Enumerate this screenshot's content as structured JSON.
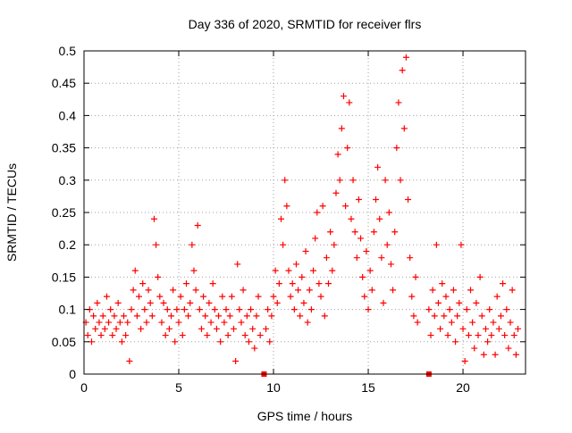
{
  "chart_data": {
    "type": "scatter",
    "title": "Day 336 of 2020, SRMTID for receiver flrs",
    "xlabel": "GPS time / hours",
    "ylabel": "SRMTID / TECUs",
    "xlim": [
      0,
      23.3
    ],
    "ylim": [
      0,
      0.5
    ],
    "x_ticks": [
      0,
      5,
      10,
      15,
      20
    ],
    "x_tick_labels": [
      "0",
      "5",
      "10",
      "15",
      "20"
    ],
    "y_ticks": [
      0,
      0.05,
      0.1,
      0.15,
      0.2,
      0.25,
      0.3,
      0.35,
      0.4,
      0.45,
      0.5
    ],
    "y_tick_labels": [
      "0",
      "0.05",
      "0.1",
      "0.15",
      "0.2",
      "0.25",
      "0.3",
      "0.35",
      "0.4",
      "0.45",
      "0.5"
    ],
    "grid": true,
    "marker": "+",
    "marker_color": "#ff0000",
    "series": [
      {
        "name": "SRMTID",
        "points": [
          [
            0.1,
            0.08
          ],
          [
            0.2,
            0.06
          ],
          [
            0.3,
            0.1
          ],
          [
            0.4,
            0.05
          ],
          [
            0.5,
            0.09
          ],
          [
            0.6,
            0.07
          ],
          [
            0.7,
            0.11
          ],
          [
            0.8,
            0.08
          ],
          [
            0.9,
            0.06
          ],
          [
            1.0,
            0.09
          ],
          [
            1.1,
            0.07
          ],
          [
            1.2,
            0.12
          ],
          [
            1.3,
            0.08
          ],
          [
            1.4,
            0.1
          ],
          [
            1.5,
            0.06
          ],
          [
            1.6,
            0.09
          ],
          [
            1.7,
            0.07
          ],
          [
            1.8,
            0.11
          ],
          [
            1.9,
            0.08
          ],
          [
            2.0,
            0.05
          ],
          [
            2.1,
            0.09
          ],
          [
            2.2,
            0.06
          ],
          [
            2.3,
            0.08
          ],
          [
            2.4,
            0.02
          ],
          [
            2.5,
            0.1
          ],
          [
            2.6,
            0.13
          ],
          [
            2.7,
            0.16
          ],
          [
            2.8,
            0.09
          ],
          [
            2.9,
            0.12
          ],
          [
            3.0,
            0.07
          ],
          [
            3.1,
            0.14
          ],
          [
            3.2,
            0.1
          ],
          [
            3.3,
            0.08
          ],
          [
            3.4,
            0.13
          ],
          [
            3.5,
            0.11
          ],
          [
            3.6,
            0.09
          ],
          [
            3.7,
            0.24
          ],
          [
            3.8,
            0.2
          ],
          [
            3.9,
            0.15
          ],
          [
            4.0,
            0.12
          ],
          [
            4.1,
            0.08
          ],
          [
            4.2,
            0.11
          ],
          [
            4.3,
            0.06
          ],
          [
            4.4,
            0.1
          ],
          [
            4.5,
            0.07
          ],
          [
            4.6,
            0.09
          ],
          [
            4.7,
            0.13
          ],
          [
            4.8,
            0.05
          ],
          [
            4.9,
            0.1
          ],
          [
            5.0,
            0.08
          ],
          [
            5.1,
            0.12
          ],
          [
            5.2,
            0.06
          ],
          [
            5.3,
            0.1
          ],
          [
            5.4,
            0.14
          ],
          [
            5.5,
            0.09
          ],
          [
            5.6,
            0.11
          ],
          [
            5.7,
            0.2
          ],
          [
            5.8,
            0.16
          ],
          [
            5.9,
            0.13
          ],
          [
            6.0,
            0.23
          ],
          [
            6.1,
            0.1
          ],
          [
            6.2,
            0.07
          ],
          [
            6.3,
            0.12
          ],
          [
            6.4,
            0.09
          ],
          [
            6.5,
            0.06
          ],
          [
            6.6,
            0.11
          ],
          [
            6.7,
            0.08
          ],
          [
            6.8,
            0.14
          ],
          [
            6.9,
            0.1
          ],
          [
            7.0,
            0.07
          ],
          [
            7.1,
            0.09
          ],
          [
            7.2,
            0.05
          ],
          [
            7.3,
            0.12
          ],
          [
            7.4,
            0.08
          ],
          [
            7.5,
            0.1
          ],
          [
            7.6,
            0.06
          ],
          [
            7.7,
            0.09
          ],
          [
            7.8,
            0.12
          ],
          [
            7.9,
            0.07
          ],
          [
            8.0,
            0.02
          ],
          [
            8.1,
            0.17
          ],
          [
            8.2,
            0.1
          ],
          [
            8.3,
            0.08
          ],
          [
            8.4,
            0.13
          ],
          [
            8.5,
            0.06
          ],
          [
            8.6,
            0.09
          ],
          [
            8.7,
            0.05
          ],
          [
            8.8,
            0.1
          ],
          [
            8.9,
            0.07
          ],
          [
            9.0,
            0.04
          ],
          [
            9.1,
            0.09
          ],
          [
            9.2,
            0.12
          ],
          [
            9.3,
            0.06
          ],
          [
            9.6,
            0.07
          ],
          [
            9.7,
            0.1
          ],
          [
            9.8,
            0.05
          ],
          [
            9.9,
            0.09
          ],
          [
            10.0,
            0.12
          ],
          [
            10.1,
            0.16
          ],
          [
            10.2,
            0.11
          ],
          [
            10.3,
            0.14
          ],
          [
            10.4,
            0.24
          ],
          [
            10.5,
            0.2
          ],
          [
            10.6,
            0.3
          ],
          [
            10.7,
            0.26
          ],
          [
            10.8,
            0.16
          ],
          [
            10.9,
            0.12
          ],
          [
            11.0,
            0.14
          ],
          [
            11.1,
            0.1
          ],
          [
            11.2,
            0.17
          ],
          [
            11.3,
            0.13
          ],
          [
            11.4,
            0.09
          ],
          [
            11.5,
            0.15
          ],
          [
            11.6,
            0.11
          ],
          [
            11.7,
            0.19
          ],
          [
            11.8,
            0.08
          ],
          [
            11.9,
            0.13
          ],
          [
            12.0,
            0.1
          ],
          [
            12.1,
            0.16
          ],
          [
            12.2,
            0.21
          ],
          [
            12.3,
            0.25
          ],
          [
            12.4,
            0.14
          ],
          [
            12.5,
            0.12
          ],
          [
            12.6,
            0.26
          ],
          [
            12.7,
            0.09
          ],
          [
            12.8,
            0.18
          ],
          [
            12.9,
            0.14
          ],
          [
            13.0,
            0.22
          ],
          [
            13.1,
            0.16
          ],
          [
            13.2,
            0.2
          ],
          [
            13.3,
            0.28
          ],
          [
            13.4,
            0.34
          ],
          [
            13.5,
            0.3
          ],
          [
            13.6,
            0.38
          ],
          [
            13.7,
            0.43
          ],
          [
            13.8,
            0.26
          ],
          [
            13.9,
            0.35
          ],
          [
            14.0,
            0.42
          ],
          [
            14.1,
            0.24
          ],
          [
            14.2,
            0.3
          ],
          [
            14.3,
            0.22
          ],
          [
            14.4,
            0.18
          ],
          [
            14.5,
            0.27
          ],
          [
            14.6,
            0.21
          ],
          [
            14.7,
            0.15
          ],
          [
            14.8,
            0.12
          ],
          [
            14.9,
            0.19
          ],
          [
            15.0,
            0.1
          ],
          [
            15.1,
            0.16
          ],
          [
            15.2,
            0.13
          ],
          [
            15.3,
            0.22
          ],
          [
            15.4,
            0.27
          ],
          [
            15.5,
            0.32
          ],
          [
            15.6,
            0.24
          ],
          [
            15.7,
            0.18
          ],
          [
            15.8,
            0.11
          ],
          [
            15.9,
            0.3
          ],
          [
            16.0,
            0.2
          ],
          [
            16.1,
            0.25
          ],
          [
            16.2,
            0.17
          ],
          [
            16.3,
            0.13
          ],
          [
            16.4,
            0.22
          ],
          [
            16.5,
            0.35
          ],
          [
            16.6,
            0.42
          ],
          [
            16.7,
            0.3
          ],
          [
            16.8,
            0.47
          ],
          [
            16.9,
            0.38
          ],
          [
            17.0,
            0.49
          ],
          [
            17.1,
            0.27
          ],
          [
            17.2,
            0.18
          ],
          [
            17.3,
            0.12
          ],
          [
            17.4,
            0.09
          ],
          [
            17.5,
            0.15
          ],
          [
            17.6,
            0.08
          ],
          [
            18.2,
            0.1
          ],
          [
            18.3,
            0.06
          ],
          [
            18.4,
            0.13
          ],
          [
            18.5,
            0.09
          ],
          [
            18.6,
            0.2
          ],
          [
            18.7,
            0.11
          ],
          [
            18.8,
            0.07
          ],
          [
            18.9,
            0.14
          ],
          [
            19.0,
            0.09
          ],
          [
            19.1,
            0.12
          ],
          [
            19.2,
            0.06
          ],
          [
            19.3,
            0.1
          ],
          [
            19.4,
            0.08
          ],
          [
            19.5,
            0.13
          ],
          [
            19.6,
            0.05
          ],
          [
            19.7,
            0.09
          ],
          [
            19.8,
            0.11
          ],
          [
            19.9,
            0.2
          ],
          [
            20.0,
            0.07
          ],
          [
            20.1,
            0.02
          ],
          [
            20.2,
            0.1
          ],
          [
            20.3,
            0.06
          ],
          [
            20.4,
            0.13
          ],
          [
            20.5,
            0.08
          ],
          [
            20.6,
            0.04
          ],
          [
            20.7,
            0.11
          ],
          [
            20.8,
            0.06
          ],
          [
            20.9,
            0.15
          ],
          [
            21.0,
            0.09
          ],
          [
            21.1,
            0.03
          ],
          [
            21.2,
            0.07
          ],
          [
            21.3,
            0.05
          ],
          [
            21.4,
            0.1
          ],
          [
            21.5,
            0.06
          ],
          [
            21.6,
            0.08
          ],
          [
            21.7,
            0.03
          ],
          [
            21.8,
            0.12
          ],
          [
            21.9,
            0.07
          ],
          [
            22.0,
            0.09
          ],
          [
            22.1,
            0.14
          ],
          [
            22.2,
            0.06
          ],
          [
            22.3,
            0.1
          ],
          [
            22.4,
            0.04
          ],
          [
            22.5,
            0.08
          ],
          [
            22.6,
            0.13
          ],
          [
            22.7,
            0.06
          ],
          [
            22.8,
            0.03
          ],
          [
            22.9,
            0.07
          ]
        ]
      },
      {
        "name": "gap markers",
        "marker": "square",
        "points": [
          [
            9.5,
            0.0
          ],
          [
            18.2,
            0.0
          ]
        ]
      }
    ]
  }
}
